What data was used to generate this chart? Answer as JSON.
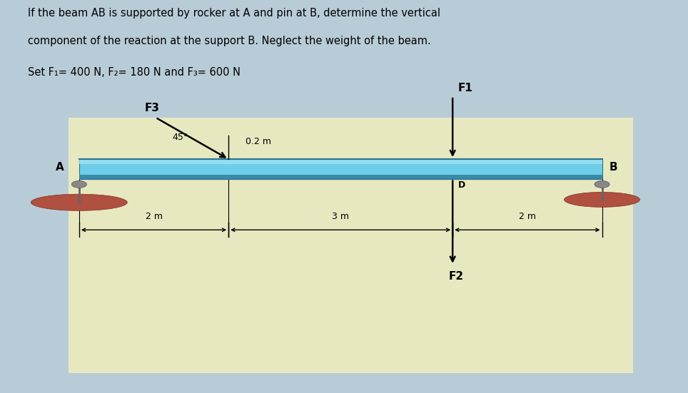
{
  "title_line1": "If the beam AB is supported by rocker at A and pin at B, determine the vertical",
  "title_line2": "component of the reaction at the support B. Neglect the weight of the beam.",
  "title_line3": "Set F₁= 400 N, F₂= 180 N and F₃= 600 N",
  "bg_outer": "#b8ccd8",
  "bg_inner": "#e8e8c0",
  "beam_face": "#6ecde8",
  "beam_top_highlight": "#a8e4f4",
  "beam_bottom_dark": "#3a8aaa",
  "beam_edge": "#2a7090",
  "support_fill": "#b05040",
  "support_edge": "#7a3020",
  "A_label": "A",
  "B_label": "B",
  "D_label": "D",
  "F1_label": "F1",
  "F2_label": "F2",
  "F3_label": "F3",
  "angle_label": "45°",
  "dist_label": "0.2 m",
  "dim_2m_left": "2 m",
  "dim_3m": "3 m",
  "dim_2m_right": "2 m"
}
